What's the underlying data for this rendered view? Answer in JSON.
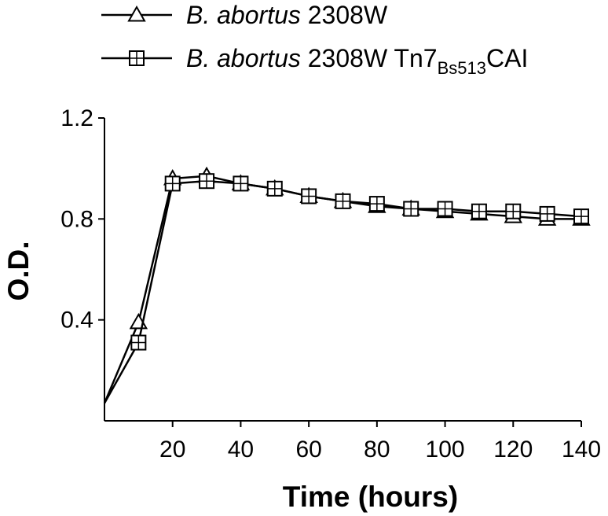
{
  "chart_data": {
    "type": "line",
    "xlabel": "Time (hours)",
    "ylabel": "O.D.",
    "xlim": [
      0,
      140
    ],
    "ylim": [
      0,
      1.2
    ],
    "x_ticks": [
      20,
      40,
      60,
      80,
      100,
      120,
      140
    ],
    "y_ticks": [
      0.4,
      0.8,
      1.2
    ],
    "x_tick_labels": [
      "20",
      "40",
      "60",
      "80",
      "100",
      "120",
      "140"
    ],
    "y_tick_labels": [
      "0.4",
      "0.8",
      "1.2"
    ],
    "legend_position": "top-left",
    "series": [
      {
        "legend": {
          "italic": "B. abortus",
          "text": " 2308W"
        },
        "marker": "triangle",
        "x": [
          0,
          10,
          20,
          30,
          40,
          50,
          60,
          70,
          80,
          90,
          100,
          110,
          120,
          130,
          140
        ],
        "y": [
          0.07,
          0.39,
          0.96,
          0.97,
          0.94,
          0.92,
          0.89,
          0.87,
          0.85,
          0.84,
          0.83,
          0.82,
          0.81,
          0.8,
          0.8
        ]
      },
      {
        "legend": {
          "italic": "B. abortus",
          "text": " 2308W Tn7",
          "sub": "Bs513",
          "suffix": "CAI"
        },
        "marker": "square-cross",
        "x": [
          0,
          10,
          20,
          30,
          40,
          50,
          60,
          70,
          80,
          90,
          100,
          110,
          120,
          130,
          140
        ],
        "y": [
          0.07,
          0.31,
          0.94,
          0.95,
          0.94,
          0.92,
          0.89,
          0.87,
          0.86,
          0.84,
          0.84,
          0.83,
          0.83,
          0.82,
          0.81
        ]
      }
    ]
  }
}
